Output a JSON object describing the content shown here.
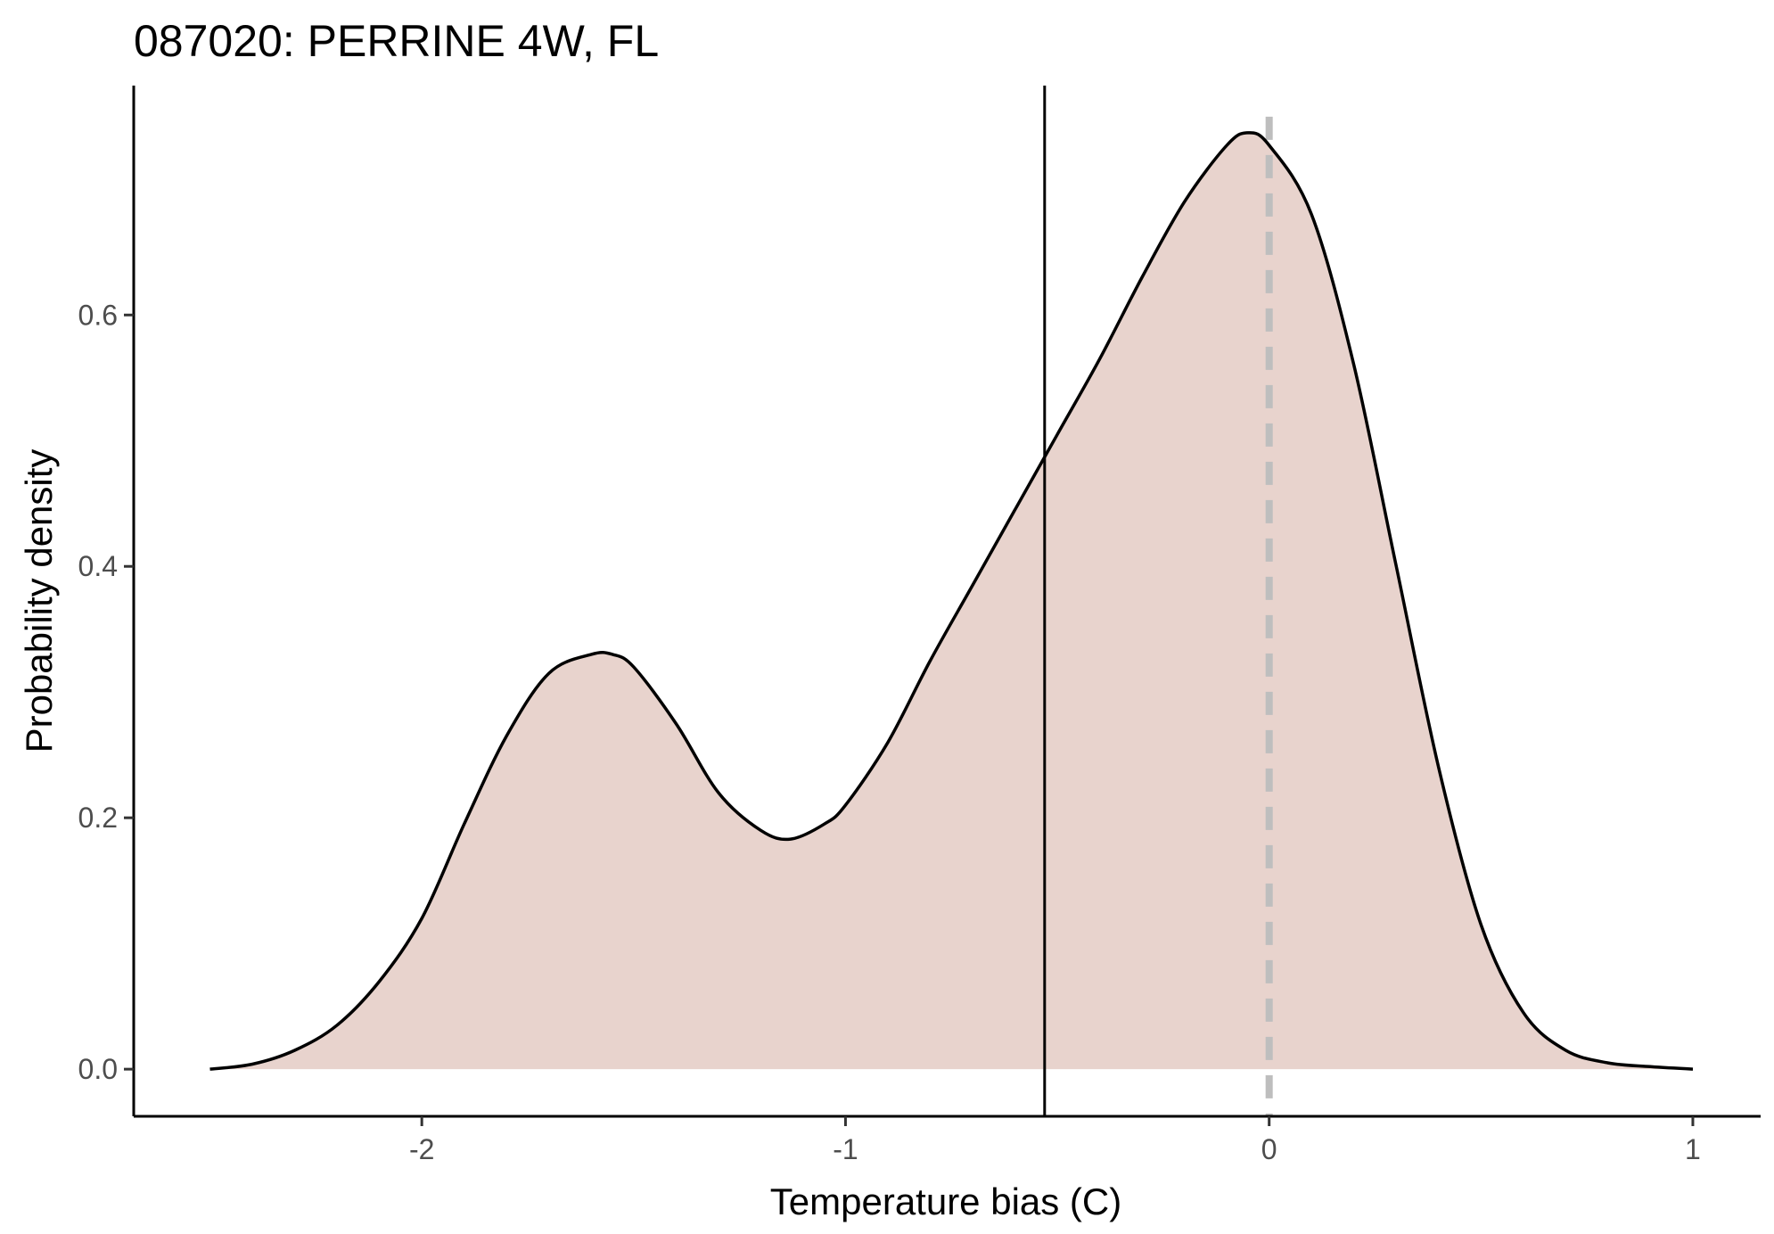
{
  "chart_data": {
    "type": "area",
    "title": "087020: PERRINE 4W, FL",
    "xlabel": "Temperature bias (C)",
    "ylabel": "Probability density",
    "xlim": [
      -2.68,
      1.16
    ],
    "ylim": [
      -0.0375,
      0.7825
    ],
    "x_ticks": [
      -2,
      -1,
      0,
      1
    ],
    "x_tick_labels": [
      "-2",
      "-1",
      "0",
      "1"
    ],
    "y_ticks": [
      0.0,
      0.2,
      0.4,
      0.6
    ],
    "y_tick_labels": [
      "0.0",
      "0.2",
      "0.4",
      "0.6"
    ],
    "grid": false,
    "legend": "none",
    "fill_color": "#e8d3cd",
    "line_color": "#000000",
    "series": [
      {
        "x": [
          -2.5,
          -2.4,
          -2.3,
          -2.2,
          -2.1,
          -2.0,
          -1.9,
          -1.8,
          -1.7,
          -1.6,
          -1.55,
          -1.5,
          -1.4,
          -1.3,
          -1.2,
          -1.13,
          -1.05,
          -1.0,
          -0.9,
          -0.8,
          -0.7,
          -0.6,
          -0.5,
          -0.4,
          -0.3,
          -0.2,
          -0.1,
          -0.05,
          0.0,
          0.1,
          0.2,
          0.3,
          0.4,
          0.5,
          0.6,
          0.7,
          0.8,
          0.9,
          1.0
        ],
        "y": [
          0.0,
          0.004,
          0.015,
          0.035,
          0.07,
          0.12,
          0.195,
          0.265,
          0.315,
          0.33,
          0.33,
          0.32,
          0.275,
          0.22,
          0.19,
          0.183,
          0.195,
          0.21,
          0.26,
          0.325,
          0.385,
          0.445,
          0.505,
          0.565,
          0.63,
          0.69,
          0.735,
          0.745,
          0.735,
          0.68,
          0.56,
          0.4,
          0.24,
          0.115,
          0.045,
          0.015,
          0.005,
          0.002,
          0.0
        ]
      }
    ],
    "reference_lines": [
      {
        "x": -0.53,
        "style": "solid",
        "color": "#000000"
      },
      {
        "x": 0.0,
        "style": "dashed",
        "color": "#bebebe"
      }
    ]
  }
}
